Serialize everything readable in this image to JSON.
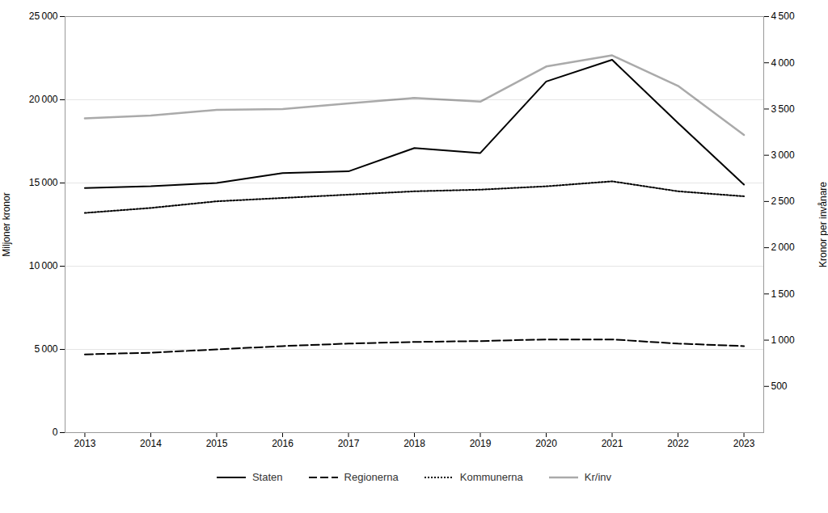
{
  "chart_data": {
    "type": "line",
    "x": [
      2013,
      2014,
      2015,
      2016,
      2017,
      2018,
      2019,
      2020,
      2021,
      2022,
      2023
    ],
    "xlim": [
      2012.7,
      2023.3
    ],
    "xticks": [
      2013,
      2014,
      2015,
      2016,
      2017,
      2018,
      2019,
      2020,
      2021,
      2022,
      2023
    ],
    "ylabel": "Miljoner kronor",
    "y2label": "Kronor per invånare",
    "ylim": [
      0,
      25000
    ],
    "yticks": [
      0,
      {
        "value": 5000,
        "label": "5 000"
      },
      {
        "value": 10000,
        "label": "10 000"
      },
      {
        "value": 15000,
        "label": "15 000"
      },
      {
        "value": 20000,
        "label": "20 000"
      },
      {
        "value": 25000,
        "label": "25 000"
      }
    ],
    "y2lim": [
      0,
      4500
    ],
    "y2ticks": [
      500,
      {
        "value": 1000,
        "label": "1 000"
      },
      {
        "value": 1500,
        "label": "1 500"
      },
      {
        "value": 2000,
        "label": "2 000"
      },
      {
        "value": 2500,
        "label": "2 500"
      },
      {
        "value": 3000,
        "label": "3 000"
      },
      {
        "value": 3500,
        "label": "3 500"
      },
      {
        "value": 4000,
        "label": "4 000"
      },
      {
        "value": 4500,
        "label": "4 500"
      }
    ],
    "grid": true,
    "legend": "bottom",
    "series": [
      {
        "name": "Staten",
        "color": "#000000",
        "line_style": "solid",
        "values": [
          14700,
          14800,
          15000,
          15600,
          15700,
          17100,
          16800,
          21100,
          22400,
          18600,
          14900
        ]
      },
      {
        "name": "Regionerna",
        "color": "#000000",
        "line_style": "dashed",
        "values": [
          4700,
          4800,
          5000,
          5200,
          5350,
          5450,
          5500,
          5600,
          5600,
          5350,
          5200
        ]
      },
      {
        "name": "Kommunerna",
        "color": "#000000",
        "line_style": "dotted",
        "values": [
          13200,
          13500,
          13900,
          14100,
          14300,
          14500,
          14600,
          14800,
          15100,
          14500,
          14200
        ]
      },
      {
        "name": "Kr/inv",
        "color": "#aaaaaa",
        "line_style": "solid",
        "axis": "y2",
        "values": [
          3400,
          3430,
          3490,
          3500,
          3560,
          3620,
          3580,
          3960,
          4080,
          3750,
          3220
        ]
      }
    ]
  }
}
